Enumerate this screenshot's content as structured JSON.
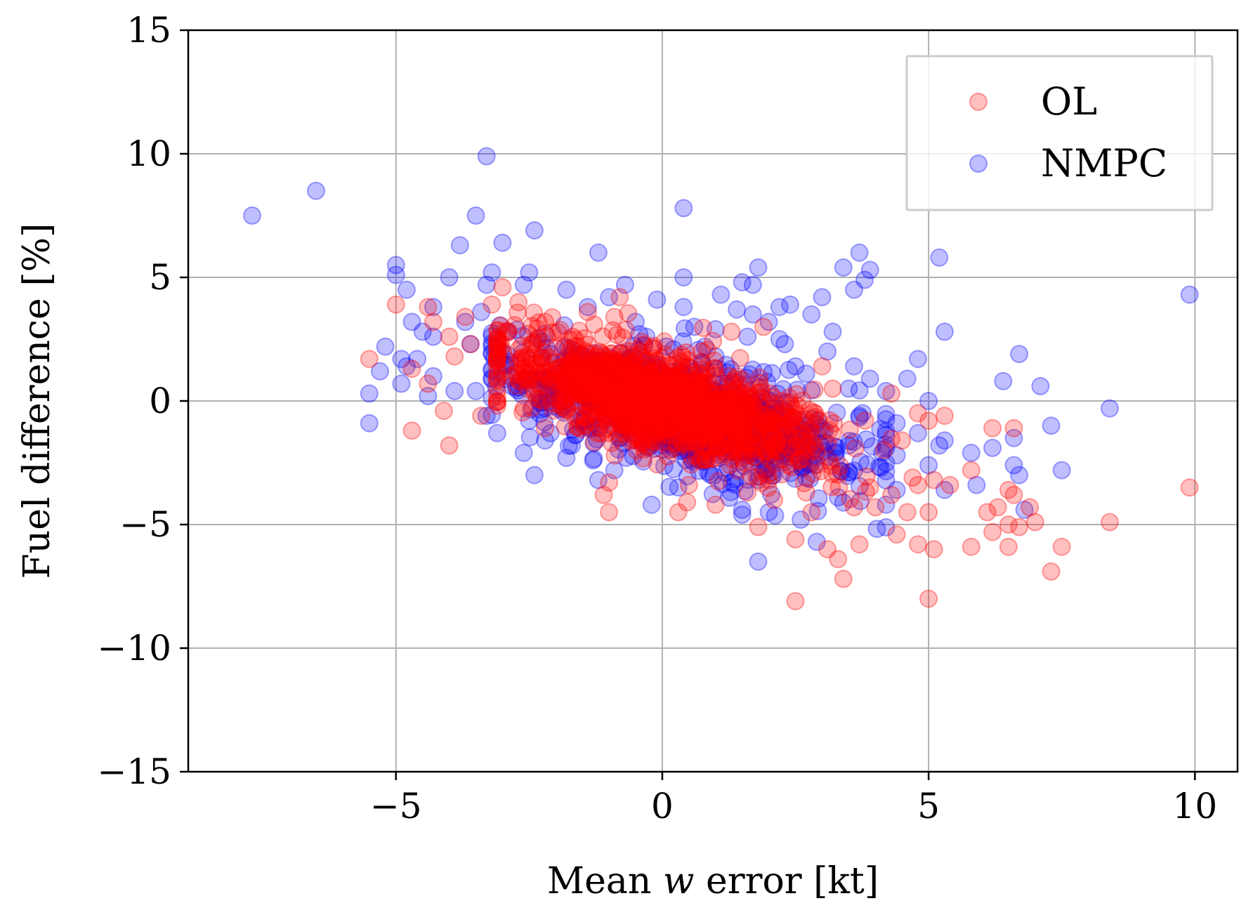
{
  "chart_data": {
    "type": "scatter",
    "xlabel_parts": [
      "Mean ",
      "w",
      " error [kt]"
    ],
    "ylabel": "Fuel difference [%]",
    "xlim": [
      -8.9,
      10.8
    ],
    "ylim": [
      -15,
      15
    ],
    "xticks": [
      {
        "value": -5,
        "label": "−5"
      },
      {
        "value": 0,
        "label": "0"
      },
      {
        "value": 5,
        "label": "5"
      },
      {
        "value": 10,
        "label": "10"
      }
    ],
    "yticks": [
      {
        "value": -15,
        "label": "−15"
      },
      {
        "value": -10,
        "label": "−10"
      },
      {
        "value": -5,
        "label": "−5"
      },
      {
        "value": 0,
        "label": "0"
      },
      {
        "value": 5,
        "label": "5"
      },
      {
        "value": 10,
        "label": "10"
      },
      {
        "value": 15,
        "label": "15"
      }
    ],
    "grid": true,
    "legend_position": "top-right",
    "series": [
      {
        "name": "NMPC",
        "color": "#0000ff",
        "points": [
          [
            -7.7,
            7.5
          ],
          [
            -6.5,
            8.5
          ],
          [
            -3.3,
            9.9
          ],
          [
            0.4,
            7.8
          ],
          [
            -3.5,
            7.5
          ],
          [
            -2.4,
            6.9
          ],
          [
            -3.8,
            6.3
          ],
          [
            -3.0,
            6.4
          ],
          [
            -1.2,
            6.0
          ],
          [
            3.7,
            6.0
          ],
          [
            5.2,
            5.8
          ],
          [
            -5.0,
            5.5
          ],
          [
            -2.5,
            5.2
          ],
          [
            3.4,
            5.4
          ],
          [
            3.9,
            5.3
          ],
          [
            1.8,
            5.4
          ],
          [
            -5.0,
            5.1
          ],
          [
            -3.2,
            5.2
          ],
          [
            -4.0,
            5.0
          ],
          [
            0.4,
            5.0
          ],
          [
            1.5,
            4.8
          ],
          [
            3.8,
            4.9
          ],
          [
            9.9,
            4.3
          ],
          [
            -4.8,
            4.5
          ],
          [
            -3.3,
            4.7
          ],
          [
            -2.6,
            4.7
          ],
          [
            -1.8,
            4.5
          ],
          [
            -0.7,
            4.7
          ],
          [
            1.7,
            4.7
          ],
          [
            3.6,
            4.5
          ],
          [
            -4.3,
            3.8
          ],
          [
            -3.4,
            3.6
          ],
          [
            -1.0,
            4.2
          ],
          [
            -0.1,
            4.1
          ],
          [
            0.4,
            3.8
          ],
          [
            1.1,
            4.3
          ],
          [
            2.2,
            3.8
          ],
          [
            2.4,
            3.9
          ],
          [
            3.0,
            4.2
          ],
          [
            -4.7,
            3.2
          ],
          [
            -3.7,
            3.2
          ],
          [
            -1.4,
            3.8
          ],
          [
            0.6,
            3.0
          ],
          [
            1.4,
            3.7
          ],
          [
            1.7,
            3.5
          ],
          [
            2.0,
            3.2
          ],
          [
            2.8,
            3.5
          ],
          [
            -4.5,
            2.8
          ],
          [
            -2.9,
            2.8
          ],
          [
            -0.5,
            3.2
          ],
          [
            1.0,
            2.9
          ],
          [
            1.6,
            2.6
          ],
          [
            2.2,
            2.5
          ],
          [
            3.2,
            2.8
          ],
          [
            -5.2,
            2.2
          ],
          [
            -4.3,
            2.6
          ],
          [
            -3.6,
            2.3
          ],
          [
            -0.3,
            2.6
          ],
          [
            0.8,
            2.2
          ],
          [
            2.3,
            2.3
          ],
          [
            3.1,
            2.0
          ],
          [
            5.3,
            2.8
          ],
          [
            -4.9,
            1.7
          ],
          [
            -4.8,
            1.4
          ],
          [
            -4.3,
            1.0
          ],
          [
            -2.1,
            1.9
          ],
          [
            1.0,
            1.8
          ],
          [
            2.5,
            1.4
          ],
          [
            3.6,
            1.4
          ],
          [
            4.8,
            1.7
          ],
          [
            6.7,
            1.9
          ],
          [
            -5.3,
            1.2
          ],
          [
            -4.9,
            0.7
          ],
          [
            -4.6,
            1.7
          ],
          [
            -3.9,
            0.4
          ],
          [
            -1.6,
            1.2
          ],
          [
            2.7,
            1.1
          ],
          [
            3.9,
            0.9
          ],
          [
            4.6,
            0.9
          ],
          [
            6.4,
            0.8
          ],
          [
            -5.5,
            0.3
          ],
          [
            -4.4,
            0.2
          ],
          [
            -3.5,
            0.4
          ],
          [
            -1.9,
            0.5
          ],
          [
            3.5,
            0.5
          ],
          [
            4.2,
            0.4
          ],
          [
            5.0,
            0.0
          ],
          [
            7.1,
            0.6
          ],
          [
            -5.5,
            -0.9
          ],
          [
            -3.3,
            -0.6
          ],
          [
            -2.5,
            -0.8
          ],
          [
            -1.2,
            -0.5
          ],
          [
            2.3,
            -0.4
          ],
          [
            3.7,
            -0.6
          ],
          [
            4.4,
            -0.9
          ],
          [
            8.4,
            -0.3
          ],
          [
            -3.1,
            -1.3
          ],
          [
            -2.2,
            -1.6
          ],
          [
            -1.7,
            -1.8
          ],
          [
            -0.8,
            -1.5
          ],
          [
            1.9,
            -1.2
          ],
          [
            4.8,
            -1.3
          ],
          [
            5.3,
            -1.6
          ],
          [
            6.6,
            -1.5
          ],
          [
            -2.6,
            -2.1
          ],
          [
            -1.8,
            -2.3
          ],
          [
            -1.3,
            -2.4
          ],
          [
            -0.9,
            -2.8
          ],
          [
            1.9,
            -2.4
          ],
          [
            4.4,
            -2.2
          ],
          [
            5.8,
            -2.1
          ],
          [
            6.2,
            -1.9
          ],
          [
            -2.4,
            -3.0
          ],
          [
            -1.2,
            -3.2
          ],
          [
            0.3,
            -3.5
          ],
          [
            1.3,
            -3.3
          ],
          [
            3.5,
            -2.9
          ],
          [
            5.0,
            -2.6
          ],
          [
            6.7,
            -3.0
          ],
          [
            7.5,
            -2.8
          ],
          [
            -0.2,
            -4.2
          ],
          [
            1.5,
            -4.4
          ],
          [
            2.0,
            -4.5
          ],
          [
            3.3,
            -3.9
          ],
          [
            4.4,
            -3.6
          ],
          [
            5.3,
            -3.6
          ],
          [
            5.9,
            -3.4
          ],
          [
            6.8,
            -4.4
          ],
          [
            1.5,
            -4.6
          ],
          [
            2.9,
            -5.7
          ],
          [
            1.8,
            -6.5
          ],
          [
            2.6,
            -4.8
          ],
          [
            7.3,
            -1.0
          ],
          [
            6.6,
            -2.6
          ],
          [
            5.2,
            -1.8
          ],
          [
            4.1,
            -2.7
          ]
        ],
        "dense_cloud": {
          "count": 900,
          "x_center": 0.3,
          "x_sd": 1.7,
          "slope": -0.55,
          "intercept": -0.3,
          "y_sd": 1.05,
          "x_min": -3.2,
          "x_max": 4.2
        }
      },
      {
        "name": "OL",
        "color": "#ff0000",
        "points": [
          [
            -5.5,
            1.7
          ],
          [
            -5.0,
            3.9
          ],
          [
            -4.7,
            1.3
          ],
          [
            -4.7,
            -1.2
          ],
          [
            -4.4,
            3.8
          ],
          [
            -4.3,
            3.2
          ],
          [
            -4.0,
            2.6
          ],
          [
            -4.0,
            -1.8
          ],
          [
            -3.7,
            3.4
          ],
          [
            -3.6,
            2.3
          ],
          [
            -3.4,
            -0.6
          ],
          [
            -3.2,
            3.9
          ],
          [
            -3.0,
            4.6
          ],
          [
            -4.4,
            0.7
          ],
          [
            -3.9,
            1.8
          ],
          [
            -4.1,
            -0.4
          ],
          [
            -2.7,
            4.0
          ],
          [
            -1.4,
            3.6
          ],
          [
            -0.8,
            4.2
          ],
          [
            -0.9,
            3.4
          ],
          [
            1.3,
            2.8
          ],
          [
            1.9,
            3.0
          ],
          [
            3.0,
            1.4
          ],
          [
            3.2,
            0.5
          ],
          [
            4.3,
            0.3
          ],
          [
            4.8,
            -0.5
          ],
          [
            5.3,
            -0.6
          ],
          [
            5.0,
            -0.8
          ],
          [
            4.5,
            -1.6
          ],
          [
            4.7,
            -3.1
          ],
          [
            4.3,
            -3.8
          ],
          [
            4.6,
            -4.5
          ],
          [
            5.0,
            -4.5
          ],
          [
            4.8,
            -3.4
          ],
          [
            5.1,
            -3.2
          ],
          [
            5.4,
            -3.4
          ],
          [
            5.8,
            -2.8
          ],
          [
            6.1,
            -4.5
          ],
          [
            6.3,
            -4.3
          ],
          [
            6.6,
            -3.8
          ],
          [
            6.7,
            -5.1
          ],
          [
            6.9,
            -4.3
          ],
          [
            7.0,
            -4.9
          ],
          [
            6.5,
            -5.0
          ],
          [
            6.2,
            -5.3
          ],
          [
            5.8,
            -5.9
          ],
          [
            5.1,
            -6.0
          ],
          [
            4.8,
            -5.8
          ],
          [
            4.4,
            -5.4
          ],
          [
            3.7,
            -5.8
          ],
          [
            3.3,
            -6.4
          ],
          [
            3.1,
            -6.0
          ],
          [
            2.5,
            -5.6
          ],
          [
            3.4,
            -7.2
          ],
          [
            2.5,
            -8.1
          ],
          [
            5.0,
            -8.0
          ],
          [
            7.3,
            -6.9
          ],
          [
            7.5,
            -5.9
          ],
          [
            8.4,
            -4.9
          ],
          [
            9.9,
            -3.5
          ],
          [
            6.5,
            -5.9
          ],
          [
            6.6,
            -1.1
          ],
          [
            6.2,
            -1.1
          ],
          [
            6.5,
            -3.6
          ],
          [
            1.8,
            -5.1
          ],
          [
            0.3,
            -4.5
          ],
          [
            -1.0,
            -4.5
          ],
          [
            -1.1,
            -3.8
          ],
          [
            1.0,
            -4.2
          ],
          [
            2.8,
            -4.5
          ],
          [
            3.6,
            -4.3
          ],
          [
            4.0,
            -4.3
          ],
          [
            -1.0,
            -3.3
          ],
          [
            0.5,
            -3.4
          ],
          [
            1.6,
            -3.7
          ],
          [
            2.1,
            -4.0
          ],
          [
            2.7,
            -3.7
          ],
          [
            3.9,
            -3.5
          ],
          [
            -2.2,
            -1.1
          ],
          [
            -2.6,
            -0.3
          ]
        ],
        "dense_cloud": {
          "count": 1400,
          "x_center": 0.0,
          "x_sd": 1.45,
          "slope": -0.5,
          "intercept": -0.1,
          "y_sd": 0.95,
          "x_min": -3.1,
          "x_max": 4.3
        }
      }
    ]
  },
  "legend": {
    "entries": [
      {
        "label": "OL",
        "color": "#ff0000"
      },
      {
        "label": "NMPC",
        "color": "#0000ff"
      }
    ]
  }
}
